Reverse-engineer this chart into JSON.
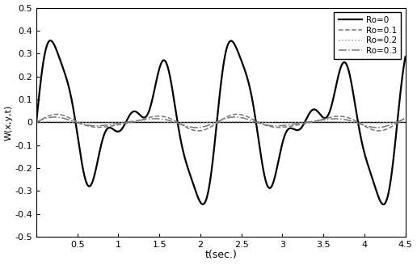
{
  "title": "",
  "xlabel": "t(sec.)",
  "ylabel": "W(x,y,t)",
  "xlim": [
    0,
    4.5
  ],
  "ylim": [
    -0.5,
    0.5
  ],
  "xticks": [
    0,
    0.5,
    1,
    1.5,
    2,
    2.5,
    3,
    3.5,
    4,
    4.5
  ],
  "yticks": [
    -0.5,
    -0.4,
    -0.3,
    -0.2,
    -0.1,
    0,
    0.1,
    0.2,
    0.3,
    0.4,
    0.5
  ],
  "legend": [
    {
      "label": "Ro=0",
      "linestyle": "-",
      "color": "#000000",
      "linewidth": 1.6
    },
    {
      "label": "Ro=0.1",
      "linestyle": "--",
      "color": "#777777",
      "linewidth": 1.1
    },
    {
      "label": "Ro=0.2",
      "linestyle": ":",
      "color": "#999999",
      "linewidth": 1.1
    },
    {
      "label": "Ro=0.3",
      "linestyle": "-.",
      "color": "#777777",
      "linewidth": 1.1
    }
  ],
  "background_color": "#ffffff",
  "grid": false
}
